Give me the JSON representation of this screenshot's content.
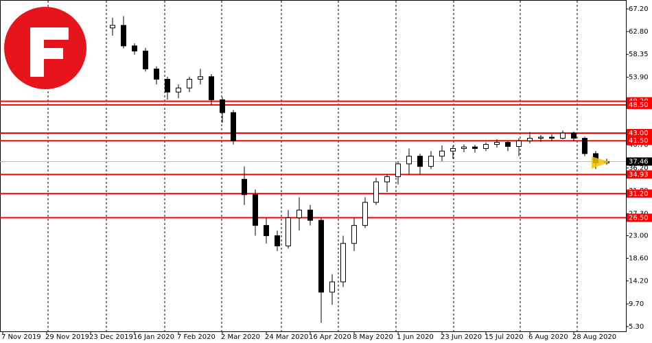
{
  "chart_data": {
    "type": "candlestick",
    "categories": [
      "7 Nov 2019",
      null,
      null,
      null,
      "29 Nov 2019",
      null,
      null,
      null,
      "23 Dec 2019",
      null,
      null,
      null,
      "16 Jan 2020",
      null,
      null,
      null,
      "7 Feb 2020",
      null,
      null,
      null,
      "2 Mar 2020",
      null,
      null,
      null,
      "24 Mar 2020",
      null,
      null,
      null,
      "16 Apr 2020",
      null,
      null,
      null,
      "8 May 2020",
      null,
      null,
      null,
      "1 Jun 2020",
      null,
      null,
      null,
      "23 Jun 2020",
      null,
      null,
      null,
      "15 Jul 2020",
      null,
      null,
      null,
      "6 Aug 2020",
      null,
      null,
      null,
      "28 Aug 2020",
      null,
      null,
      null
    ],
    "open": [
      null,
      null,
      null,
      null,
      null,
      null,
      null,
      null,
      null,
      null,
      63.5,
      64,
      60,
      59,
      55.5,
      53.5,
      51,
      51.8,
      53.5,
      54,
      49.5,
      47,
      34,
      31,
      25,
      23,
      21,
      26.5,
      28,
      26,
      12,
      14,
      21.5,
      25,
      29.5,
      33.5,
      34.5,
      37,
      38.5,
      36.5,
      38.5,
      39.5,
      40,
      40.3,
      40,
      40.8,
      41.2,
      40.4,
      41.5,
      42,
      42.2,
      42,
      43,
      42,
      39,
      37.2
    ],
    "high": [
      null,
      null,
      null,
      null,
      null,
      null,
      null,
      null,
      null,
      null,
      65.5,
      65.8,
      60.5,
      59.6,
      56,
      54,
      52.5,
      54,
      55.5,
      54.5,
      50,
      47.5,
      36.5,
      32,
      26.5,
      24,
      28,
      30.5,
      29,
      26.5,
      15.5,
      23,
      26.5,
      30.5,
      34.3,
      35,
      37.5,
      40,
      39,
      39.5,
      40.6,
      40.5,
      40.8,
      40.7,
      41.2,
      41.8,
      41.5,
      42,
      43.2,
      42.6,
      42.8,
      43.5,
      43.3,
      42.3,
      39.5,
      38
    ],
    "low": [
      null,
      null,
      null,
      null,
      null,
      null,
      null,
      null,
      null,
      null,
      62,
      59.5,
      58.3,
      55,
      52.5,
      49.5,
      49.8,
      51,
      52.5,
      48.5,
      45,
      40.8,
      29,
      23,
      21.5,
      20,
      20.5,
      24,
      25,
      6,
      9.5,
      13,
      20,
      24.5,
      29,
      31.5,
      33,
      35,
      35,
      36,
      37.5,
      38,
      39.3,
      39.2,
      39.5,
      40.2,
      39.5,
      38.5,
      41,
      41.3,
      41.5,
      41.8,
      41.5,
      38.5,
      36,
      36.8
    ],
    "close": [
      null,
      null,
      null,
      null,
      null,
      null,
      null,
      null,
      null,
      null,
      64,
      60,
      59,
      55.5,
      53.5,
      51,
      51.8,
      53.5,
      54,
      49.5,
      47,
      41.5,
      31,
      25,
      23,
      21,
      26.5,
      28,
      26,
      12,
      14,
      21.5,
      25,
      29.5,
      33.5,
      34.5,
      37,
      38.5,
      36.5,
      38.5,
      39.5,
      40,
      40.3,
      40,
      40.8,
      41.2,
      40.4,
      41.5,
      42,
      42.2,
      42,
      43,
      42,
      39,
      37.2,
      37.46
    ],
    "ylim": [
      4.36,
      68.81
    ],
    "yticks": [
      {
        "value": 67.2,
        "label": "67.20"
      },
      {
        "value": 62.8,
        "label": "62.80"
      },
      {
        "value": 58.35,
        "label": "58.35"
      },
      {
        "value": 53.9,
        "label": "53.90"
      },
      {
        "value": 40.7,
        "label": "40.70"
      },
      {
        "value": 36.2,
        "label": "36.20"
      },
      {
        "value": 31.8,
        "label": "31.80"
      },
      {
        "value": 27.3,
        "label": "27.30"
      },
      {
        "value": 23,
        "label": "23.00"
      },
      {
        "value": 18.6,
        "label": "18.60"
      },
      {
        "value": 14.2,
        "label": "14.20"
      },
      {
        "value": 9.7,
        "label": "9.70"
      },
      {
        "value": 5.3,
        "label": "5.30"
      }
    ],
    "levels": [
      {
        "value": 49.2,
        "label": "49.20"
      },
      {
        "value": 48.5,
        "label": "48.50"
      },
      {
        "value": 43,
        "label": "43.00"
      },
      {
        "value": 41.5,
        "label": "41.50"
      },
      {
        "value": 34.93,
        "label": "34.93"
      },
      {
        "value": 31.2,
        "label": "31.20"
      },
      {
        "value": 26.5,
        "label": "26.50"
      }
    ],
    "level_color": "#ff0000",
    "current_price": {
      "value": 37.46,
      "label": "37.46"
    }
  }
}
